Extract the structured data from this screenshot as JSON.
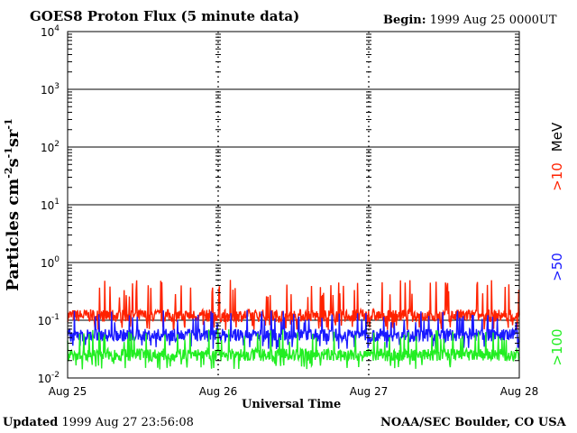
{
  "title": "GOES8 Proton Flux (5 minute data)",
  "begin": {
    "label": "Begin:",
    "value": "1999 Aug 25 0000UT"
  },
  "updated": {
    "label": "Updated",
    "value": "1999 Aug 27 23:56:08"
  },
  "credit": "NOAA/SEC Boulder, CO USA",
  "colors": {
    "ge10": "#ff2200",
    "ge50": "#1a1aff",
    "ge100": "#22ee22",
    "axis": "#000000"
  },
  "chart_data": {
    "type": "line",
    "title": "GOES8 Proton Flux (5 minute data)",
    "xlabel": "Universal Time",
    "ylabel": "Particles cm-2s-1sr-1",
    "y_scale": "log",
    "ylim": [
      0.01,
      10000
    ],
    "y_ticks": [
      {
        "value": 0.01,
        "base": "10",
        "exp": "-2"
      },
      {
        "value": 0.1,
        "base": "10",
        "exp": "-1"
      },
      {
        "value": 1,
        "base": "10",
        "exp": "0"
      },
      {
        "value": 10,
        "base": "10",
        "exp": "1"
      },
      {
        "value": 100,
        "base": "10",
        "exp": "2"
      },
      {
        "value": 1000,
        "base": "10",
        "exp": "3"
      },
      {
        "value": 10000,
        "base": "10",
        "exp": "4"
      }
    ],
    "x_ticks": [
      "Aug 25",
      "Aug 26",
      "Aug 27",
      "Aug 28"
    ],
    "grid": true,
    "right_labels": {
      "unit": "MeV",
      "ge10": ">10",
      "ge50": ">50",
      "ge100": ">100"
    },
    "series": [
      {
        "key": "ge10",
        "approx_baseline": 0.12,
        "approx_peak": 0.5
      },
      {
        "key": "ge50",
        "approx_baseline": 0.055,
        "approx_peak": 0.15
      },
      {
        "key": "ge100",
        "approx_baseline": 0.025,
        "approx_peak": 0.07
      }
    ]
  }
}
